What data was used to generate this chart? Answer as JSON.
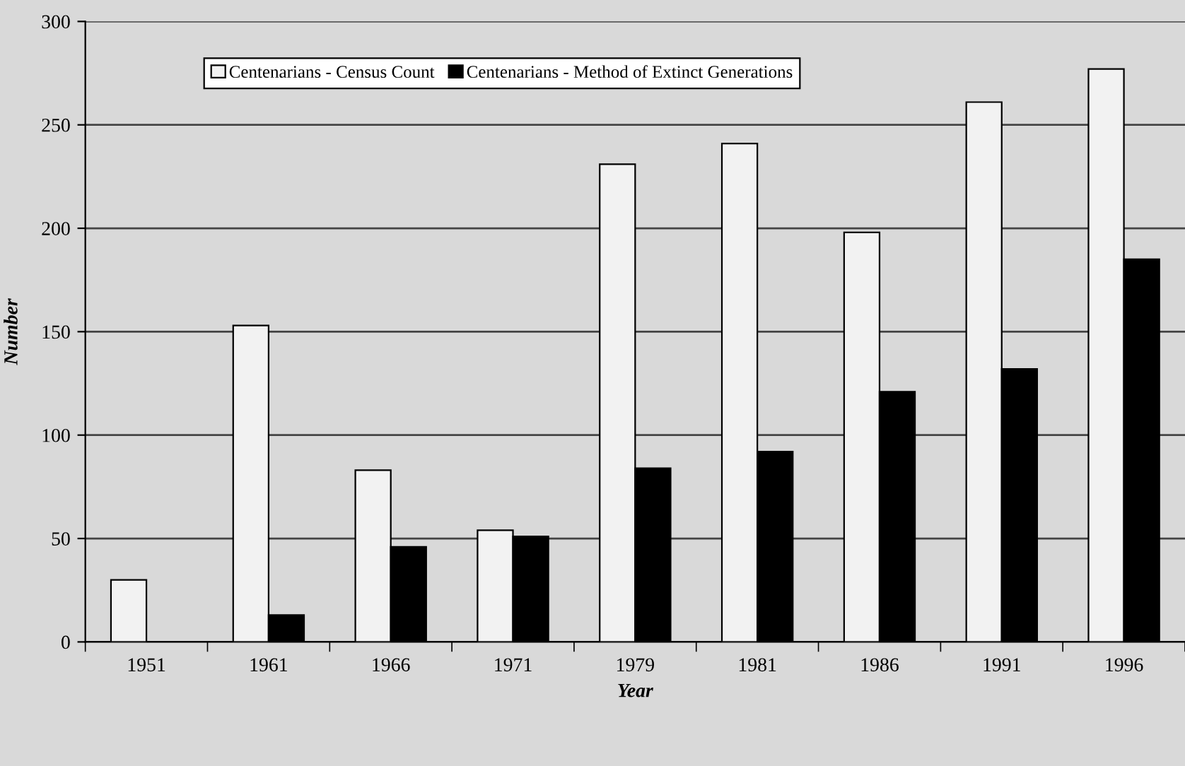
{
  "chart_data": {
    "type": "bar",
    "xlabel": "Year",
    "ylabel": "Number",
    "categories": [
      "1951",
      "1961",
      "1966",
      "1971",
      "1979",
      "1981",
      "1986",
      "1991",
      "1996"
    ],
    "series": [
      {
        "name": "Centenarians - Census Count",
        "color": "#f2f2f2",
        "values": [
          30,
          153,
          83,
          54,
          231,
          241,
          198,
          261,
          277
        ]
      },
      {
        "name": "Centenarians - Method of Extinct Generations",
        "color": "#000000",
        "values": [
          null,
          13,
          46,
          51,
          84,
          92,
          121,
          132,
          185
        ]
      }
    ],
    "ylim": [
      0,
      300
    ],
    "yticks": [
      0,
      50,
      100,
      150,
      200,
      250,
      300
    ],
    "grid": "y",
    "legend": "top left"
  }
}
